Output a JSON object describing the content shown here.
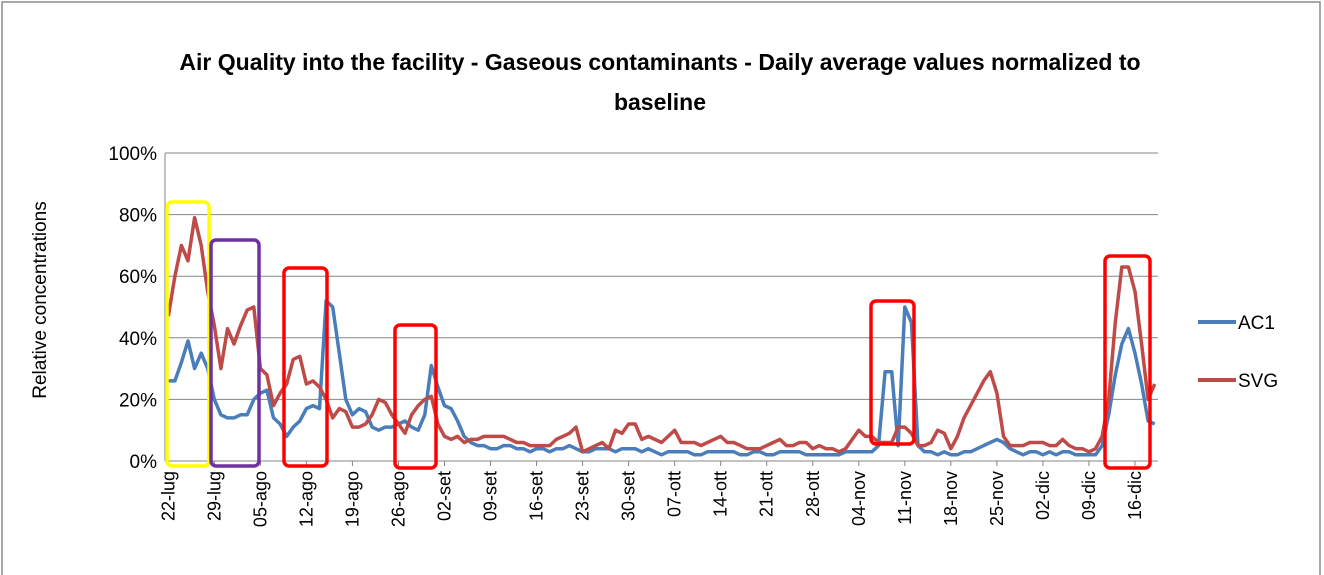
{
  "chart_data": {
    "type": "line",
    "title": "Air Quality into the facility - Gaseous contaminants - Daily average values normalized to baseline",
    "y_label": "Relative concentrations",
    "categories": [
      "22-lug",
      null,
      null,
      null,
      null,
      null,
      null,
      "29-lug",
      null,
      null,
      null,
      null,
      null,
      null,
      "05-ago",
      null,
      null,
      null,
      null,
      null,
      null,
      "12-ago",
      null,
      null,
      null,
      null,
      null,
      null,
      "19-ago",
      null,
      null,
      null,
      null,
      null,
      null,
      "26-ago",
      null,
      null,
      null,
      null,
      null,
      null,
      "02-set",
      null,
      null,
      null,
      null,
      null,
      null,
      "09-set",
      null,
      null,
      null,
      null,
      null,
      null,
      "16-set",
      null,
      null,
      null,
      null,
      null,
      null,
      "23-set",
      null,
      null,
      null,
      null,
      null,
      null,
      "30-set",
      null,
      null,
      null,
      null,
      null,
      null,
      "07-ott",
      null,
      null,
      null,
      null,
      null,
      null,
      "14-ott",
      null,
      null,
      null,
      null,
      null,
      null,
      "21-ott",
      null,
      null,
      null,
      null,
      null,
      null,
      "28-ott",
      null,
      null,
      null,
      null,
      null,
      null,
      "04-nov",
      null,
      null,
      null,
      null,
      null,
      null,
      "11-nov",
      null,
      null,
      null,
      null,
      null,
      null,
      "18-nov",
      null,
      null,
      null,
      null,
      null,
      null,
      "25-nov",
      null,
      null,
      null,
      null,
      null,
      null,
      "02-dic",
      null,
      null,
      null,
      null,
      null,
      null,
      "09-dic",
      null,
      null,
      null,
      null,
      null,
      null,
      "16-dic",
      null,
      null,
      null
    ],
    "series": [
      {
        "name": "AC1",
        "color": "#4a7ebb",
        "values": [
          26,
          26,
          32,
          39,
          30,
          35,
          30,
          20,
          15,
          14,
          14,
          15,
          15,
          20,
          22,
          23,
          14,
          12,
          8,
          11,
          13,
          17,
          18,
          17,
          52,
          50,
          35,
          20,
          15,
          17,
          16,
          11,
          10,
          11,
          11,
          12,
          13,
          11,
          10,
          15,
          31,
          24,
          18,
          17,
          13,
          8,
          6,
          5,
          5,
          4,
          4,
          5,
          5,
          4,
          4,
          3,
          4,
          4,
          3,
          4,
          4,
          5,
          4,
          3,
          3,
          4,
          4,
          4,
          3,
          4,
          4,
          4,
          3,
          4,
          3,
          2,
          3,
          3,
          3,
          3,
          2,
          2,
          3,
          3,
          3,
          3,
          3,
          2,
          2,
          3,
          3,
          2,
          2,
          3,
          3,
          3,
          3,
          2,
          2,
          2,
          2,
          2,
          2,
          3,
          3,
          3,
          3,
          3,
          5,
          29,
          29,
          5,
          50,
          45,
          5,
          3,
          3,
          2,
          3,
          2,
          2,
          3,
          3,
          4,
          5,
          6,
          7,
          6,
          4,
          3,
          2,
          3,
          3,
          2,
          3,
          2,
          3,
          3,
          2,
          2,
          2,
          2,
          5,
          15,
          28,
          38,
          43,
          35,
          25,
          13,
          12
        ]
      },
      {
        "name": "SVG",
        "color": "#be4b48",
        "values": [
          47,
          60,
          70,
          65,
          79,
          70,
          55,
          44,
          30,
          43,
          38,
          44,
          49,
          50,
          30,
          28,
          18,
          22,
          25,
          33,
          34,
          25,
          26,
          24,
          20,
          14,
          17,
          16,
          11,
          11,
          12,
          15,
          20,
          19,
          15,
          12,
          9,
          15,
          18,
          20,
          21,
          12,
          8,
          7,
          8,
          6,
          7,
          7,
          8,
          8,
          8,
          8,
          7,
          6,
          6,
          5,
          5,
          5,
          5,
          7,
          8,
          9,
          11,
          3,
          4,
          5,
          6,
          4,
          10,
          9,
          12,
          12,
          7,
          8,
          7,
          6,
          8,
          10,
          6,
          6,
          6,
          5,
          6,
          7,
          8,
          6,
          6,
          5,
          4,
          4,
          4,
          5,
          6,
          7,
          5,
          5,
          6,
          6,
          4,
          5,
          4,
          4,
          3,
          4,
          7,
          10,
          8,
          8,
          6,
          6,
          6,
          11,
          11,
          9,
          5,
          5,
          6,
          10,
          9,
          4,
          8,
          14,
          18,
          22,
          26,
          29,
          22,
          8,
          5,
          5,
          5,
          6,
          6,
          6,
          5,
          5,
          7,
          5,
          4,
          4,
          3,
          4,
          8,
          20,
          45,
          63,
          63,
          55,
          38,
          20,
          25
        ]
      }
    ],
    "ylim": [
      0,
      100
    ],
    "yticks": [
      {
        "value": 0,
        "label": "0%"
      },
      {
        "value": 20,
        "label": "20%"
      },
      {
        "value": 40,
        "label": "40%"
      },
      {
        "value": 60,
        "label": "60%"
      },
      {
        "value": 80,
        "label": "80%"
      },
      {
        "value": 100,
        "label": "100%"
      }
    ],
    "grid": true,
    "legend": "right"
  }
}
